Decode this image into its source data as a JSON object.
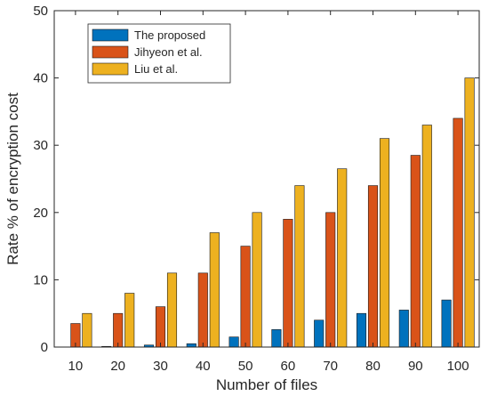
{
  "chart_data": {
    "type": "bar",
    "xlabel": "Number of files",
    "ylabel": "Rate % of encryption cost",
    "ylim": [
      0,
      50
    ],
    "yticks": [
      0,
      10,
      20,
      30,
      40,
      50
    ],
    "grid": false,
    "legend_position": "top-left",
    "categories": [
      "10",
      "20",
      "30",
      "40",
      "50",
      "60",
      "70",
      "80",
      "90",
      "100"
    ],
    "series": [
      {
        "name": "The proposed",
        "color": "#0072BD",
        "values": [
          0,
          0.1,
          0.3,
          0.5,
          1.5,
          2.6,
          4,
          5,
          5.5,
          7
        ]
      },
      {
        "name": "Jihyeon et al.",
        "color": "#D95319",
        "values": [
          3.5,
          5,
          6,
          11,
          15,
          19,
          20,
          24,
          28.5,
          34
        ]
      },
      {
        "name": "Liu et al.",
        "color": "#EDB120",
        "values": [
          5,
          8,
          11,
          17,
          20,
          24,
          26.5,
          31,
          33,
          40
        ]
      }
    ]
  }
}
